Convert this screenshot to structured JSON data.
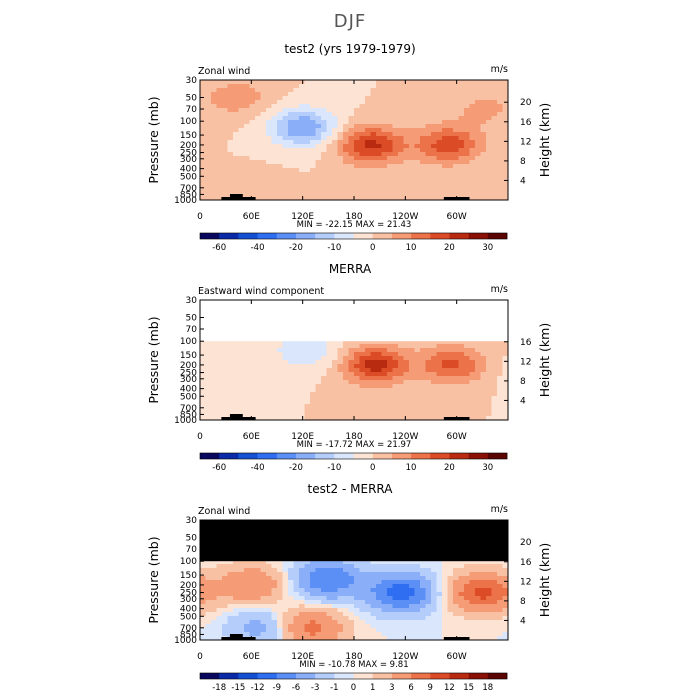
{
  "page_title": "DJF",
  "chart_data": [
    {
      "type": "heatmap",
      "title": "test2 (yrs 1979-1979)",
      "subtitle_left": "Zonal wind",
      "units": "m/s",
      "ylabel": "Pressure (mb)",
      "ylabel_right": "Height (km)",
      "x_ticks": [
        "0",
        "60E",
        "120E",
        "180",
        "120W",
        "60W"
      ],
      "y_ticks": [
        "30",
        "50",
        "70",
        "100",
        "150",
        "200",
        "250",
        "300",
        "400",
        "500",
        "700",
        "850",
        "1000"
      ],
      "y_ticks_right": [
        "20",
        "16",
        "12",
        "8",
        "4"
      ],
      "min_max_text": "MIN = -22.15   MAX =  21.43",
      "min": -22.15,
      "max": 21.43,
      "colorbar_labels": [
        "-60",
        "-40",
        "-20",
        "-10",
        "0",
        "10",
        "20",
        "30"
      ],
      "colorbar_levels": [
        -60,
        -50,
        -40,
        -30,
        -20,
        -15,
        -10,
        -5,
        0,
        5,
        10,
        15,
        20,
        25,
        30
      ],
      "colors": [
        "#08085e",
        "#0a2aa8",
        "#1450d2",
        "#2f6ef0",
        "#5b8ff5",
        "#8aaff8",
        "#b5cdfa",
        "#d9e6fb",
        "#fde3d3",
        "#f9c1a3",
        "#f59b76",
        "#ec7349",
        "#db4b26",
        "#b92b10",
        "#8a0f05",
        "#5a0502"
      ],
      "features": [
        {
          "lon": 120,
          "p": 120,
          "value": -20
        },
        {
          "lon": 200,
          "p": 200,
          "value": 21.43
        },
        {
          "lon": 290,
          "p": 200,
          "value": 18
        },
        {
          "lon": 45,
          "p": 50,
          "value": 8
        },
        {
          "lon": 330,
          "p": 70,
          "value": 6
        },
        {
          "lon": 60,
          "p": 850,
          "value": 4
        }
      ]
    },
    {
      "type": "heatmap",
      "title": "MERRA",
      "subtitle_left": "Eastward wind component",
      "units": "m/s",
      "ylabel": "Pressure (mb)",
      "ylabel_right": "Height (km)",
      "x_ticks": [
        "0",
        "60E",
        "120E",
        "180",
        "120W",
        "60W"
      ],
      "y_ticks": [
        "30",
        "50",
        "70",
        "100",
        "150",
        "200",
        "250",
        "300",
        "400",
        "500",
        "700",
        "850",
        "1000"
      ],
      "y_ticks_right": [
        "16",
        "12",
        "8",
        "4"
      ],
      "min_max_text": "MIN = -17.72   MAX =  21.97",
      "min": -17.72,
      "max": 21.97,
      "colorbar_labels": [
        "-60",
        "-40",
        "-20",
        "-10",
        "0",
        "10",
        "20",
        "30"
      ],
      "colorbar_levels": [
        -60,
        -50,
        -40,
        -30,
        -20,
        -15,
        -10,
        -5,
        0,
        5,
        10,
        15,
        20,
        25,
        30
      ],
      "colors": [
        "#08085e",
        "#0a2aa8",
        "#1450d2",
        "#2f6ef0",
        "#5b8ff5",
        "#8aaff8",
        "#b5cdfa",
        "#d9e6fb",
        "#fde3d3",
        "#f9c1a3",
        "#f59b76",
        "#ec7349",
        "#db4b26",
        "#b92b10",
        "#8a0f05",
        "#5a0502"
      ],
      "features": [
        {
          "lon": 125,
          "p": 130,
          "value": -10
        },
        {
          "lon": 205,
          "p": 200,
          "value": 21.97
        },
        {
          "lon": 295,
          "p": 200,
          "value": 16
        },
        {
          "lon": 30,
          "p": 250,
          "value": -4
        }
      ]
    },
    {
      "type": "heatmap",
      "title": "test2 - MERRA",
      "subtitle_left": "Zonal wind",
      "units": "m/s",
      "ylabel": "Pressure (mb)",
      "ylabel_right": "Height (km)",
      "x_ticks": [
        "0",
        "60E",
        "120E",
        "180",
        "120W",
        "60W"
      ],
      "y_ticks": [
        "30",
        "50",
        "70",
        "100",
        "150",
        "200",
        "250",
        "300",
        "400",
        "500",
        "700",
        "850",
        "1000"
      ],
      "y_ticks_right": [
        "20",
        "16",
        "12",
        "8",
        "4"
      ],
      "min_max_text": "MIN = -10.78   MAX =   9.81",
      "min": -10.78,
      "max": 9.81,
      "colorbar_labels": [
        "-18",
        "-15",
        "-12",
        "-9",
        "-6",
        "-3",
        "-1",
        "0",
        "1",
        "3",
        "6",
        "9",
        "12",
        "15",
        "18"
      ],
      "colorbar_levels": [
        -18,
        -15,
        -12,
        -9,
        -6,
        -3,
        -1,
        0,
        1,
        3,
        6,
        9,
        12,
        15,
        18
      ],
      "colors": [
        "#08085e",
        "#0a2aa8",
        "#1450d2",
        "#2f6ef0",
        "#5b8ff5",
        "#8aaff8",
        "#b5cdfa",
        "#d9e6fb",
        "#fde3d3",
        "#f9c1a3",
        "#f59b76",
        "#ec7349",
        "#db4b26",
        "#b92b10",
        "#8a0f05",
        "#5a0502"
      ],
      "features": [
        {
          "lon": 150,
          "p": 170,
          "value": -9
        },
        {
          "lon": 235,
          "p": 250,
          "value": -10.78
        },
        {
          "lon": 60,
          "p": 200,
          "value": 6
        },
        {
          "lon": 330,
          "p": 250,
          "value": 9.81
        },
        {
          "lon": 130,
          "p": 700,
          "value": 7
        },
        {
          "lon": 70,
          "p": 700,
          "value": -4
        }
      ]
    }
  ]
}
